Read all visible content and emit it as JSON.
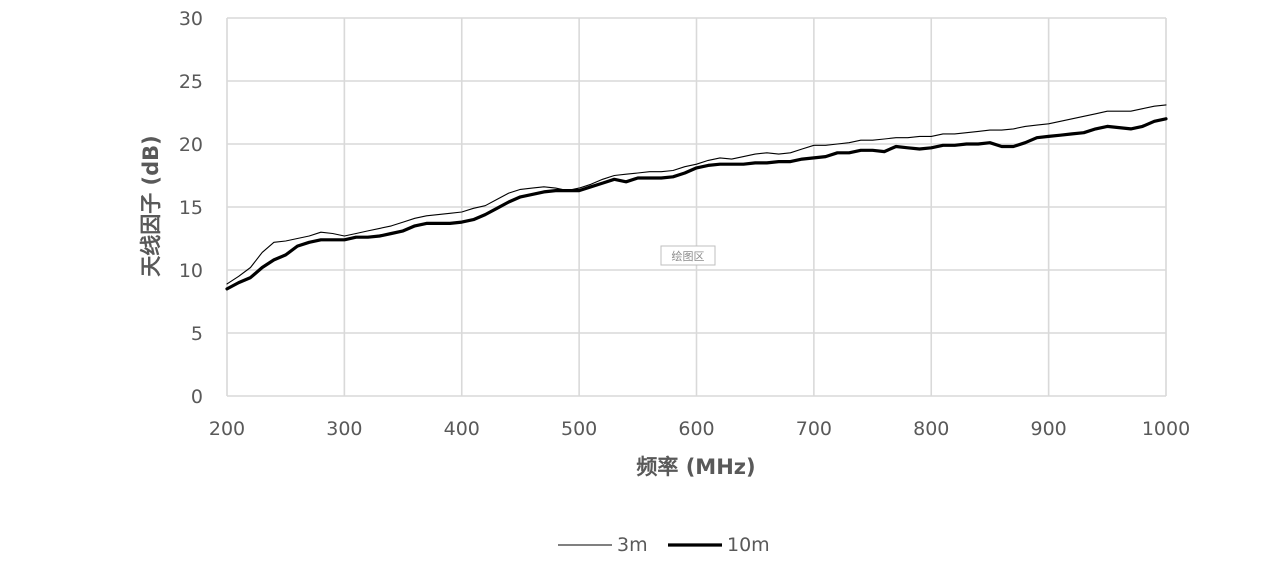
{
  "chart_data": {
    "type": "line",
    "title": "",
    "xlabel": "频率 (MHz)",
    "ylabel": "天线因子 (dB)",
    "xlim": [
      200,
      1000
    ],
    "ylim": [
      0,
      30
    ],
    "xticks": [
      200,
      300,
      400,
      500,
      600,
      700,
      800,
      900,
      1000
    ],
    "yticks": [
      0,
      5,
      10,
      15,
      20,
      25,
      30
    ],
    "xtick_labels": [
      "200",
      "300",
      "400",
      "500",
      "600",
      "700",
      "800",
      "900",
      "1000"
    ],
    "ytick_labels": [
      "0",
      "5",
      "10",
      "15",
      "20",
      "25",
      "30"
    ],
    "grid": true,
    "legend_position": "bottom",
    "plot_area_label": "绘图区",
    "series": [
      {
        "name": "3m",
        "color": "#000000",
        "style": "thin",
        "x": [
          200,
          210,
          220,
          230,
          240,
          250,
          260,
          270,
          280,
          290,
          300,
          310,
          320,
          330,
          340,
          350,
          360,
          370,
          380,
          390,
          400,
          410,
          420,
          430,
          440,
          450,
          460,
          470,
          480,
          490,
          500,
          510,
          520,
          530,
          540,
          550,
          560,
          570,
          580,
          590,
          600,
          610,
          620,
          630,
          640,
          650,
          660,
          670,
          680,
          690,
          700,
          710,
          720,
          730,
          740,
          750,
          760,
          770,
          780,
          790,
          800,
          810,
          820,
          830,
          840,
          850,
          860,
          870,
          880,
          890,
          900,
          910,
          920,
          930,
          940,
          950,
          960,
          970,
          980,
          990,
          1000
        ],
        "y": [
          8.9,
          9.5,
          10.2,
          11.4,
          12.2,
          12.3,
          12.5,
          12.7,
          13.0,
          12.9,
          12.7,
          12.9,
          13.1,
          13.3,
          13.5,
          13.8,
          14.1,
          14.3,
          14.4,
          14.5,
          14.6,
          14.9,
          15.1,
          15.6,
          16.1,
          16.4,
          16.5,
          16.6,
          16.5,
          16.3,
          16.5,
          16.8,
          17.2,
          17.5,
          17.6,
          17.7,
          17.8,
          17.8,
          17.9,
          18.2,
          18.4,
          18.7,
          18.9,
          18.8,
          19.0,
          19.2,
          19.3,
          19.2,
          19.3,
          19.6,
          19.9,
          19.9,
          20.0,
          20.1,
          20.3,
          20.3,
          20.4,
          20.5,
          20.5,
          20.6,
          20.6,
          20.8,
          20.8,
          20.9,
          21.0,
          21.1,
          21.1,
          21.2,
          21.4,
          21.5,
          21.6,
          21.8,
          22.0,
          22.2,
          22.4,
          22.6,
          22.6,
          22.6,
          22.8,
          23.0,
          23.1
        ]
      },
      {
        "name": "10m",
        "color": "#000000",
        "style": "thick",
        "x": [
          200,
          210,
          220,
          230,
          240,
          250,
          260,
          270,
          280,
          290,
          300,
          310,
          320,
          330,
          340,
          350,
          360,
          370,
          380,
          390,
          400,
          410,
          420,
          430,
          440,
          450,
          460,
          470,
          480,
          490,
          500,
          510,
          520,
          530,
          540,
          550,
          560,
          570,
          580,
          590,
          600,
          610,
          620,
          630,
          640,
          650,
          660,
          670,
          680,
          690,
          700,
          710,
          720,
          730,
          740,
          750,
          760,
          770,
          780,
          790,
          800,
          810,
          820,
          830,
          840,
          850,
          860,
          870,
          880,
          890,
          900,
          910,
          920,
          930,
          940,
          950,
          960,
          970,
          980,
          990,
          1000
        ],
        "y": [
          8.5,
          9.0,
          9.4,
          10.2,
          10.8,
          11.2,
          11.9,
          12.2,
          12.4,
          12.4,
          12.4,
          12.6,
          12.6,
          12.7,
          12.9,
          13.1,
          13.5,
          13.7,
          13.7,
          13.7,
          13.8,
          14.0,
          14.4,
          14.9,
          15.4,
          15.8,
          16.0,
          16.2,
          16.3,
          16.3,
          16.3,
          16.6,
          16.9,
          17.2,
          17.0,
          17.3,
          17.3,
          17.3,
          17.4,
          17.7,
          18.1,
          18.3,
          18.4,
          18.4,
          18.4,
          18.5,
          18.5,
          18.6,
          18.6,
          18.8,
          18.9,
          19.0,
          19.3,
          19.3,
          19.5,
          19.5,
          19.4,
          19.8,
          19.7,
          19.6,
          19.7,
          19.9,
          19.9,
          20.0,
          20.0,
          20.1,
          19.8,
          19.8,
          20.1,
          20.5,
          20.6,
          20.7,
          20.8,
          20.9,
          21.2,
          21.4,
          21.3,
          21.2,
          21.4,
          21.8,
          22.0
        ]
      }
    ]
  }
}
